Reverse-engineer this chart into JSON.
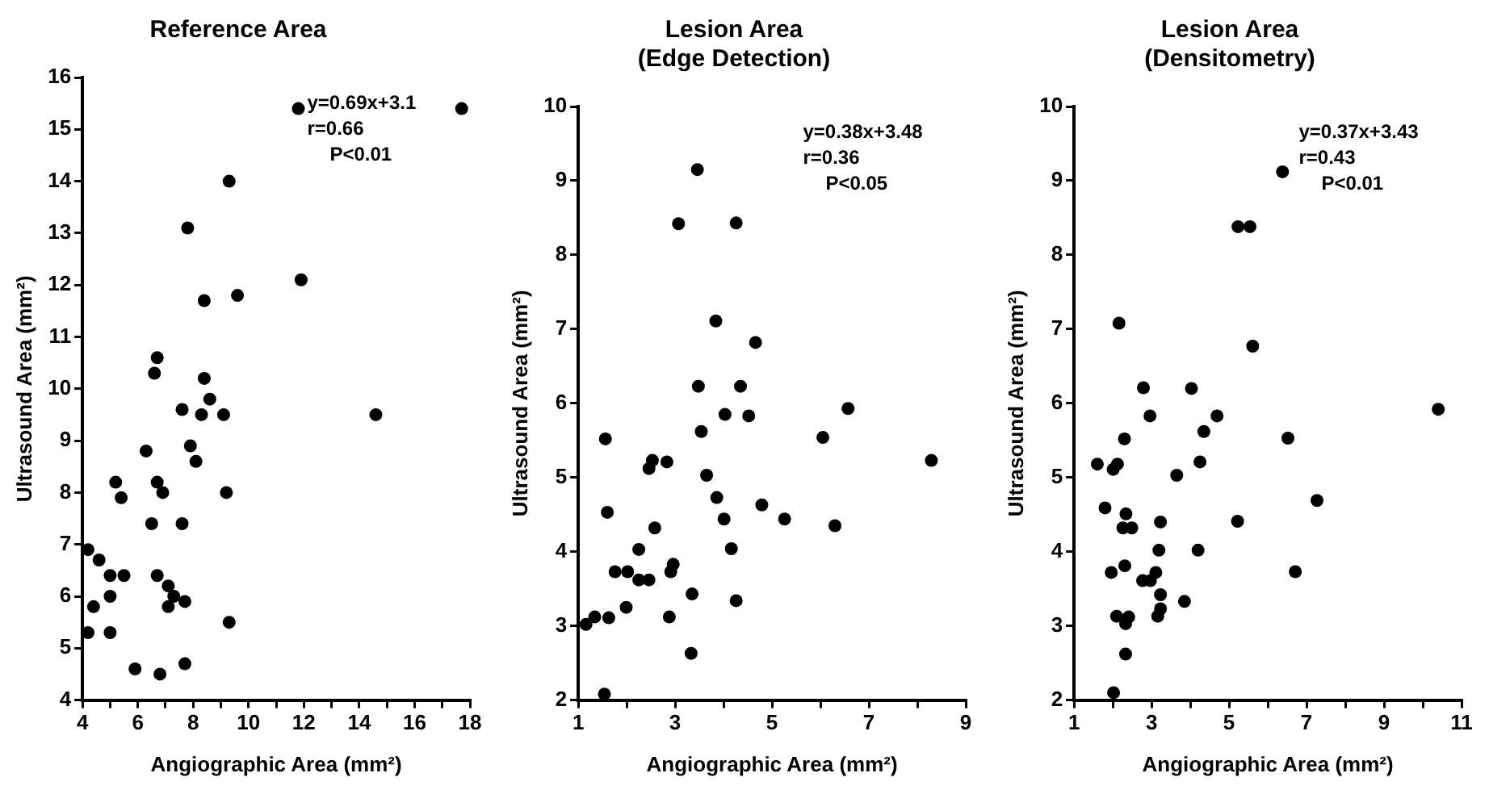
{
  "chart_data": [
    {
      "type": "scatter",
      "title": "Reference Area",
      "xlabel": "Angiographic Area (mm²)",
      "ylabel": "Ultrasound Area (mm²)",
      "marker": "circle",
      "grid": false,
      "legend": false,
      "annotations": [
        "y=0.69x+3.1",
        "r=0.66",
        "P<0.01"
      ],
      "xlim": [
        4,
        18
      ],
      "xticks": [
        4,
        {
          "value": 5,
          "label": null
        },
        6,
        {
          "value": 7,
          "label": null
        },
        8,
        {
          "value": 9,
          "label": null
        },
        10,
        {
          "value": 11,
          "label": null
        },
        12,
        {
          "value": 13,
          "label": null
        },
        14,
        {
          "value": 15,
          "label": null
        },
        16,
        {
          "value": 17,
          "label": null
        },
        18
      ],
      "ylim": [
        4,
        16
      ],
      "yticks": [
        4,
        5,
        6,
        7,
        8,
        9,
        10,
        11,
        12,
        13,
        14,
        15,
        16
      ],
      "series": [
        {
          "color": "#000000",
          "x": [
            6.7,
            6.6,
            8.4,
            7.6,
            8.6,
            8.3,
            9.1,
            14.6,
            6.3,
            7.9,
            8.1,
            5.2,
            5.4,
            6.7,
            6.9,
            9.2,
            6.5,
            7.6,
            4.2,
            4.6,
            5.0,
            5.5,
            6.7,
            7.1,
            7.3,
            7.1,
            7.7,
            5.0,
            4.4,
            9.3,
            4.2,
            5.0,
            5.9,
            6.8,
            7.7,
            11.8,
            17.7,
            9.3,
            7.8,
            11.9,
            8.4,
            9.6
          ],
          "values": [
            10.6,
            10.3,
            10.2,
            9.6,
            9.8,
            9.5,
            9.5,
            9.5,
            8.8,
            8.9,
            8.6,
            8.2,
            7.9,
            8.2,
            8.0,
            8.0,
            7.4,
            7.4,
            6.9,
            6.7,
            6.4,
            6.4,
            6.4,
            6.2,
            6.0,
            5.8,
            5.9,
            6.0,
            5.8,
            5.5,
            5.3,
            5.3,
            4.6,
            4.5,
            4.7,
            15.4,
            15.4,
            14.0,
            13.1,
            12.1,
            11.7,
            11.8
          ]
        }
      ]
    },
    {
      "type": "scatter",
      "title": "Lesion Area\n(Edge Detection)",
      "xlabel": "Angiographic Area (mm²)",
      "ylabel": "Ultrasound Area (mm²)",
      "marker": "circle",
      "grid": false,
      "legend": false,
      "annotations": [
        "y=0.38x+3.48",
        "r=0.36",
        "P<0.05"
      ],
      "xlim": [
        1,
        9
      ],
      "xticks": [
        1,
        {
          "value": 2,
          "label": null
        },
        3,
        {
          "value": 4,
          "label": null
        },
        5,
        {
          "value": 6,
          "label": null
        },
        7,
        {
          "value": 8,
          "label": null
        },
        9
      ],
      "ylim": [
        2,
        10
      ],
      "yticks": [
        2,
        3,
        4,
        5,
        6,
        7,
        8,
        9,
        10
      ],
      "series": [
        {
          "color": "#000000",
          "x": [
            3.46,
            3.07,
            4.26,
            3.84,
            4.66,
            3.48,
            4.35,
            6.57,
            4.03,
            4.52,
            3.54,
            1.56,
            6.05,
            2.53,
            2.83,
            2.46,
            8.29,
            3.65,
            3.86,
            1.6,
            4.79,
            4.01,
            5.26,
            2.58,
            6.3,
            2.25,
            4.16,
            1.76,
            2.02,
            2.96,
            2.91,
            2.25,
            2.46,
            1.99,
            3.35,
            4.26,
            1.16,
            1.34,
            1.63,
            2.88,
            3.33,
            1.54
          ],
          "values": [
            9.15,
            8.42,
            8.43,
            7.11,
            6.82,
            6.23,
            6.23,
            5.93,
            5.85,
            5.83,
            5.62,
            5.52,
            5.54,
            5.23,
            5.21,
            5.12,
            5.23,
            5.03,
            4.73,
            4.53,
            4.63,
            4.44,
            4.44,
            4.32,
            4.35,
            4.03,
            4.04,
            3.73,
            3.73,
            3.83,
            3.73,
            3.62,
            3.62,
            3.25,
            3.43,
            3.34,
            3.02,
            3.12,
            3.11,
            3.12,
            2.63,
            2.08
          ]
        }
      ]
    },
    {
      "type": "scatter",
      "title": "Lesion Area\n(Densitometry)",
      "xlabel": "Angiographic Area (mm²)",
      "ylabel": "Ultrasound Area (mm²)",
      "marker": "circle",
      "grid": false,
      "legend": false,
      "annotations": [
        "y=0.37x+3.43",
        "r=0.43",
        "P<0.01"
      ],
      "xlim": [
        1,
        11
      ],
      "xticks": [
        1,
        {
          "value": 2,
          "label": null
        },
        3,
        {
          "value": 4,
          "label": null
        },
        5,
        {
          "value": 6,
          "label": null
        },
        7,
        {
          "value": 8,
          "label": null
        },
        9,
        {
          "value": 10,
          "label": null
        },
        11
      ],
      "ylim": [
        2,
        10
      ],
      "yticks": [
        2,
        3,
        4,
        5,
        6,
        7,
        8,
        9,
        10
      ],
      "series": [
        {
          "color": "#000000",
          "x": [
            2.79,
            4.03,
            2.96,
            4.69,
            4.35,
            2.3,
            6.52,
            10.4,
            1.6,
            2.12,
            2.01,
            4.25,
            3.65,
            1.8,
            7.27,
            2.34,
            2.26,
            2.49,
            3.23,
            5.22,
            3.19,
            4.2,
            2.31,
            1.96,
            2.77,
            2.97,
            3.11,
            6.71,
            3.23,
            3.85,
            3.23,
            3.16,
            2.1,
            2.41,
            2.33,
            2.33,
            2.02,
            6.38,
            5.23,
            5.54,
            2.16,
            5.61
          ],
          "values": [
            6.21,
            6.2,
            5.83,
            5.83,
            5.62,
            5.52,
            5.53,
            5.92,
            5.18,
            5.18,
            5.11,
            5.21,
            5.03,
            4.59,
            4.69,
            4.51,
            4.32,
            4.32,
            4.4,
            4.41,
            4.02,
            4.02,
            3.81,
            3.72,
            3.61,
            3.61,
            3.72,
            3.73,
            3.42,
            3.33,
            3.23,
            3.13,
            3.13,
            3.12,
            3.03,
            2.62,
            2.1,
            9.12,
            8.38,
            8.38,
            7.08,
            6.77
          ]
        }
      ]
    }
  ]
}
